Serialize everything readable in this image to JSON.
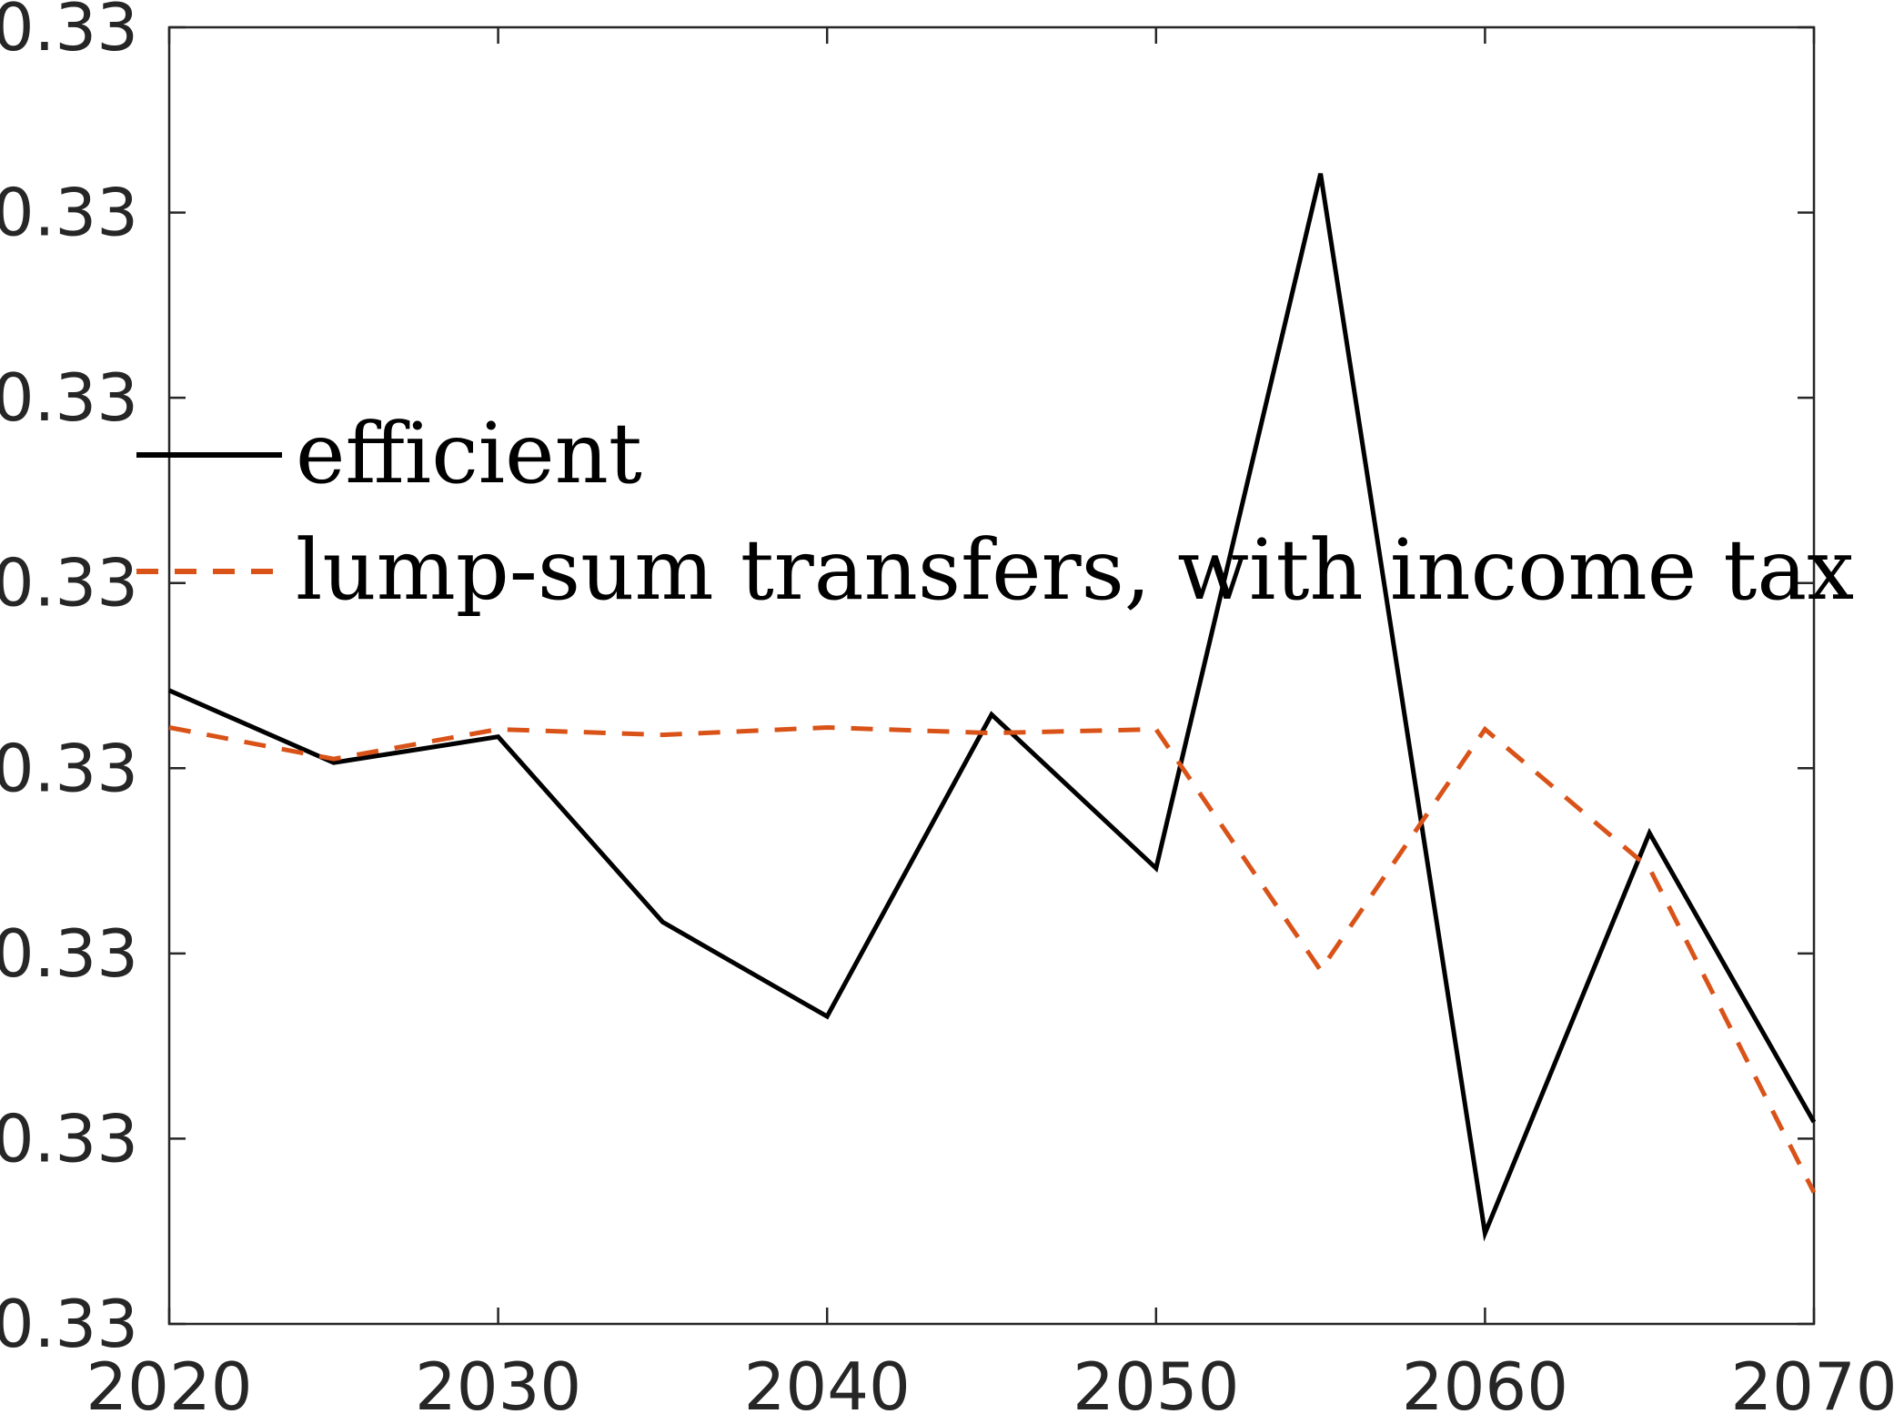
{
  "chart_data": {
    "type": "line",
    "x": [
      2020,
      2025,
      2030,
      2035,
      2040,
      2045,
      2050,
      2055,
      2060,
      2065,
      2070
    ],
    "xlim": [
      2020,
      2070
    ],
    "xticks": [
      2020,
      2030,
      2040,
      2050,
      2060,
      2070
    ],
    "xtick_labels": [
      "2020",
      "2030",
      "2040",
      "2050",
      "2060",
      "2070"
    ],
    "ylim": [
      0.0,
      7.0
    ],
    "yticks": [
      0,
      1,
      2,
      3,
      4,
      5,
      6,
      7
    ],
    "ytick_labels": [
      "0.33",
      "0.33",
      "0.33",
      "0.33",
      "0.33",
      "0.33",
      "0.33",
      "0.33"
    ],
    "y_value_note": "relative positions; printed tick labels all read 0.33",
    "series": [
      {
        "name": "efficient",
        "color": "#000000",
        "style": "solid",
        "values": [
          3.42,
          3.03,
          3.17,
          2.17,
          1.66,
          3.29,
          2.46,
          6.21,
          0.49,
          2.65,
          1.09
        ]
      },
      {
        "name": "lump-sum transfers, with income tax",
        "color": "#D95319",
        "style": "dashed",
        "values": [
          3.22,
          3.05,
          3.21,
          3.18,
          3.22,
          3.19,
          3.21,
          1.91,
          3.21,
          2.46,
          0.71
        ]
      }
    ],
    "legend": {
      "location": "upper-left",
      "entries": [
        "efficient",
        "lump-sum transfers, with income tax"
      ]
    },
    "grid": false,
    "box": true
  }
}
